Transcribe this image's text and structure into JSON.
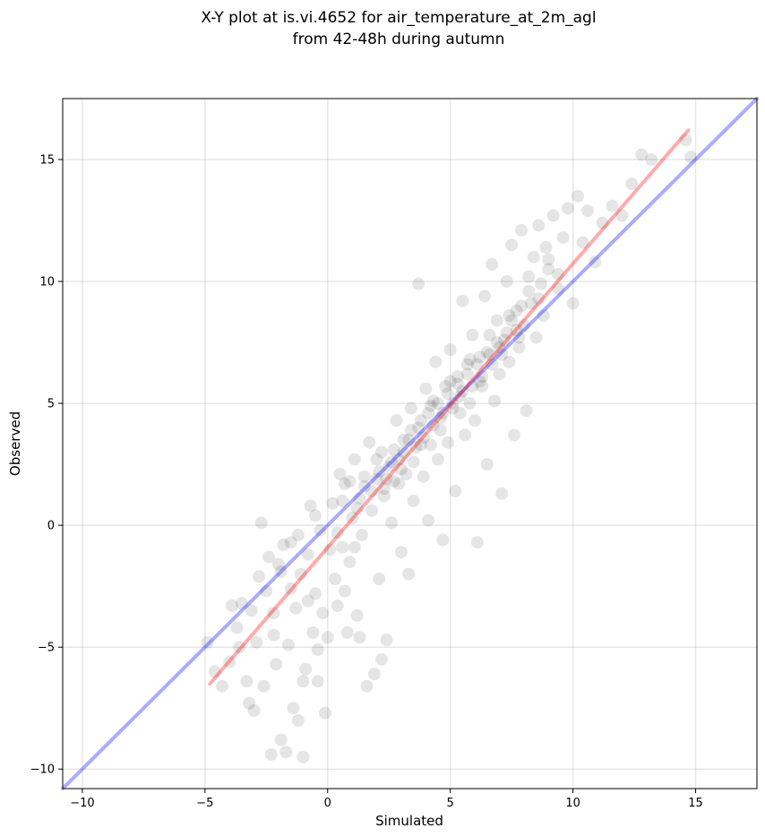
{
  "chart_data": {
    "type": "scatter",
    "title": [
      "X-Y plot at is.vi.4652 for air_temperature_at_2m_agl",
      "from 42-48h during autumn"
    ],
    "xlabel": "Simulated",
    "ylabel": "Observed",
    "xlim": [
      -10.8,
      17.5
    ],
    "ylim": [
      -10.8,
      17.5
    ],
    "xticks": [
      -10,
      -5,
      0,
      5,
      10,
      15
    ],
    "yticks": [
      -10,
      -5,
      0,
      5,
      10,
      15
    ],
    "xtick_labels": [
      "−10",
      "−5",
      "0",
      "5",
      "10",
      "15"
    ],
    "ytick_labels": [
      "−10",
      "−5",
      "0",
      "5",
      "10",
      "15"
    ],
    "grid": true,
    "marker_color": "#000000",
    "marker_alpha": 0.1,
    "series": [
      {
        "values": [
          [
            -4.9,
            -4.8
          ],
          [
            -4.6,
            -6.0
          ],
          [
            -4.3,
            -6.6
          ],
          [
            -4.0,
            -5.6
          ],
          [
            -3.9,
            -3.3
          ],
          [
            -3.6,
            -5.0
          ],
          [
            -3.5,
            -3.2
          ],
          [
            -3.3,
            -6.4
          ],
          [
            -3.2,
            -7.3
          ],
          [
            -3.0,
            -7.6
          ],
          [
            -2.9,
            -4.8
          ],
          [
            -2.8,
            -2.1
          ],
          [
            -2.7,
            0.1
          ],
          [
            -2.6,
            -6.6
          ],
          [
            -2.4,
            -1.3
          ],
          [
            -2.3,
            -9.4
          ],
          [
            -2.2,
            -3.6
          ],
          [
            -2.1,
            -5.7
          ],
          [
            -2.0,
            -1.6
          ],
          [
            -1.9,
            -8.8
          ],
          [
            -1.8,
            -0.8
          ],
          [
            -1.7,
            -9.3
          ],
          [
            -1.6,
            -4.9
          ],
          [
            -1.5,
            -0.7
          ],
          [
            -1.4,
            -7.5
          ],
          [
            -1.3,
            -3.4
          ],
          [
            -1.2,
            -8.0
          ],
          [
            -1.1,
            -2.0
          ],
          [
            -1.0,
            -9.5
          ],
          [
            -0.9,
            -5.9
          ],
          [
            -0.8,
            -1.2
          ],
          [
            -0.7,
            0.8
          ],
          [
            -0.6,
            -4.4
          ],
          [
            -0.5,
            -2.8
          ],
          [
            -0.4,
            -6.4
          ],
          [
            -0.3,
            -0.2
          ],
          [
            -0.2,
            -3.6
          ],
          [
            -0.1,
            -7.7
          ],
          [
            0.0,
            -4.6
          ],
          [
            0.1,
            -1.0
          ],
          [
            0.2,
            0.9
          ],
          [
            0.3,
            -2.2
          ],
          [
            0.4,
            -3.3
          ],
          [
            0.5,
            2.1
          ],
          [
            0.6,
            -0.9
          ],
          [
            0.7,
            1.7
          ],
          [
            0.8,
            -4.4
          ],
          [
            0.9,
            -1.5
          ],
          [
            1.0,
            0.3
          ],
          [
            1.1,
            2.7
          ],
          [
            1.2,
            -3.7
          ],
          [
            1.3,
            1.1
          ],
          [
            1.4,
            -0.4
          ],
          [
            1.5,
            2.0
          ],
          [
            1.6,
            -6.6
          ],
          [
            1.7,
            3.4
          ],
          [
            1.8,
            0.6
          ],
          [
            1.9,
            -6.1
          ],
          [
            2.0,
            1.9
          ],
          [
            2.1,
            -2.2
          ],
          [
            2.2,
            3.0
          ],
          [
            2.3,
            1.5
          ],
          [
            2.4,
            -4.7
          ],
          [
            2.5,
            2.4
          ],
          [
            2.6,
            0.1
          ],
          [
            2.7,
            1.8
          ],
          [
            2.8,
            4.3
          ],
          [
            2.9,
            2.7
          ],
          [
            3.0,
            -1.1
          ],
          [
            3.1,
            3.5
          ],
          [
            3.2,
            2.1
          ],
          [
            3.3,
            -2.0
          ],
          [
            3.4,
            4.8
          ],
          [
            3.5,
            1.0
          ],
          [
            3.6,
            3.2
          ],
          [
            3.7,
            9.9
          ],
          [
            3.8,
            4.3
          ],
          [
            3.9,
            2.0
          ],
          [
            4.0,
            5.6
          ],
          [
            4.1,
            0.2
          ],
          [
            4.2,
            3.3
          ],
          [
            4.3,
            5.1
          ],
          [
            4.4,
            6.7
          ],
          [
            4.5,
            2.7
          ],
          [
            4.6,
            4.4
          ],
          [
            4.7,
            -0.6
          ],
          [
            4.8,
            5.7
          ],
          [
            4.9,
            3.4
          ],
          [
            5.0,
            7.2
          ],
          [
            5.1,
            4.8
          ],
          [
            5.2,
            1.4
          ],
          [
            5.3,
            6.1
          ],
          [
            5.4,
            5.3
          ],
          [
            5.5,
            9.2
          ],
          [
            5.6,
            3.7
          ],
          [
            5.7,
            6.6
          ],
          [
            5.8,
            5.0
          ],
          [
            5.9,
            7.8
          ],
          [
            6.0,
            4.3
          ],
          [
            6.1,
            -0.7
          ],
          [
            6.2,
            6.9
          ],
          [
            6.3,
            5.7
          ],
          [
            6.4,
            9.4
          ],
          [
            6.5,
            2.5
          ],
          [
            6.6,
            7.0
          ],
          [
            6.7,
            10.7
          ],
          [
            6.8,
            5.1
          ],
          [
            6.9,
            8.4
          ],
          [
            7.0,
            6.2
          ],
          [
            7.1,
            1.3
          ],
          [
            7.2,
            7.6
          ],
          [
            7.3,
            10.0
          ],
          [
            7.4,
            6.7
          ],
          [
            7.5,
            11.5
          ],
          [
            7.6,
            3.7
          ],
          [
            7.7,
            8.8
          ],
          [
            7.8,
            7.3
          ],
          [
            7.9,
            12.1
          ],
          [
            8.0,
            8.2
          ],
          [
            8.1,
            4.7
          ],
          [
            8.2,
            10.2
          ],
          [
            8.3,
            9.1
          ],
          [
            8.4,
            11.0
          ],
          [
            8.5,
            7.7
          ],
          [
            8.6,
            12.3
          ],
          [
            8.7,
            9.9
          ],
          [
            8.8,
            8.6
          ],
          [
            8.9,
            11.4
          ],
          [
            9.0,
            10.5
          ],
          [
            9.2,
            12.7
          ],
          [
            9.4,
            9.7
          ],
          [
            9.6,
            11.8
          ],
          [
            9.8,
            13.0
          ],
          [
            10.0,
            9.1
          ],
          [
            10.2,
            13.5
          ],
          [
            10.4,
            11.6
          ],
          [
            10.6,
            12.9
          ],
          [
            10.9,
            10.8
          ],
          [
            11.2,
            12.4
          ],
          [
            11.6,
            13.1
          ],
          [
            12.0,
            12.7
          ],
          [
            12.4,
            14.0
          ],
          [
            12.8,
            15.2
          ],
          [
            13.2,
            15.0
          ],
          [
            14.6,
            15.8
          ],
          [
            14.8,
            15.1
          ],
          [
            1.8,
            1.4
          ],
          [
            2.1,
            2.2
          ],
          [
            2.4,
            1.9
          ],
          [
            2.6,
            2.6
          ],
          [
            2.9,
            1.7
          ],
          [
            3.1,
            3.0
          ],
          [
            3.3,
            3.5
          ],
          [
            3.5,
            2.6
          ],
          [
            3.7,
            4.0
          ],
          [
            3.9,
            3.6
          ],
          [
            4.1,
            4.6
          ],
          [
            4.3,
            4.1
          ],
          [
            4.5,
            5.0
          ],
          [
            4.7,
            4.6
          ],
          [
            4.9,
            5.4
          ],
          [
            5.1,
            5.0
          ],
          [
            5.3,
            5.8
          ],
          [
            5.5,
            5.5
          ],
          [
            5.7,
            6.2
          ],
          [
            5.9,
            5.7
          ],
          [
            6.1,
            6.6
          ],
          [
            6.3,
            6.1
          ],
          [
            6.5,
            7.1
          ],
          [
            6.7,
            6.6
          ],
          [
            6.9,
            7.5
          ],
          [
            7.1,
            7.0
          ],
          [
            7.3,
            7.9
          ],
          [
            7.5,
            8.4
          ],
          [
            7.7,
            8.0
          ],
          [
            7.9,
            9.0
          ],
          [
            2.0,
            2.7
          ],
          [
            2.3,
            1.2
          ],
          [
            2.7,
            3.1
          ],
          [
            3.0,
            2.3
          ],
          [
            3.4,
            3.9
          ],
          [
            3.8,
            3.3
          ],
          [
            4.2,
            4.9
          ],
          [
            4.6,
            3.9
          ],
          [
            5.0,
            5.9
          ],
          [
            5.4,
            4.6
          ],
          [
            5.8,
            6.8
          ],
          [
            6.2,
            5.9
          ],
          [
            6.6,
            7.8
          ],
          [
            7.0,
            7.3
          ],
          [
            7.4,
            8.6
          ],
          [
            7.8,
            7.7
          ],
          [
            8.2,
            9.6
          ],
          [
            8.6,
            9.3
          ],
          [
            9.0,
            10.9
          ],
          [
            9.4,
            10.3
          ],
          [
            0.6,
            1.0
          ],
          [
            0.9,
            1.8
          ],
          [
            1.2,
            0.7
          ],
          [
            1.5,
            1.6
          ],
          [
            1.1,
            -0.9
          ],
          [
            0.4,
            -0.3
          ],
          [
            -0.5,
            0.4
          ],
          [
            -1.2,
            -0.4
          ],
          [
            -1.9,
            -1.9
          ],
          [
            -2.5,
            -2.7
          ],
          [
            -3.1,
            -3.5
          ],
          [
            -3.7,
            -4.2
          ],
          [
            -1.5,
            -2.6
          ],
          [
            -0.8,
            -3.1
          ],
          [
            -2.2,
            -4.5
          ],
          [
            -1.0,
            -6.4
          ],
          [
            0.7,
            -2.7
          ],
          [
            1.3,
            -4.6
          ],
          [
            2.2,
            -5.5
          ],
          [
            -0.4,
            -5.1
          ]
        ]
      }
    ],
    "lines": [
      {
        "color": "#0000ff",
        "alpha": 0.33,
        "x": [
          -10.8,
          17.5
        ],
        "y": [
          -10.8,
          17.5
        ]
      },
      {
        "color": "#ff0000",
        "alpha": 0.33,
        "x": [
          -4.8,
          14.7
        ],
        "y": [
          -6.5,
          16.2
        ]
      }
    ]
  }
}
